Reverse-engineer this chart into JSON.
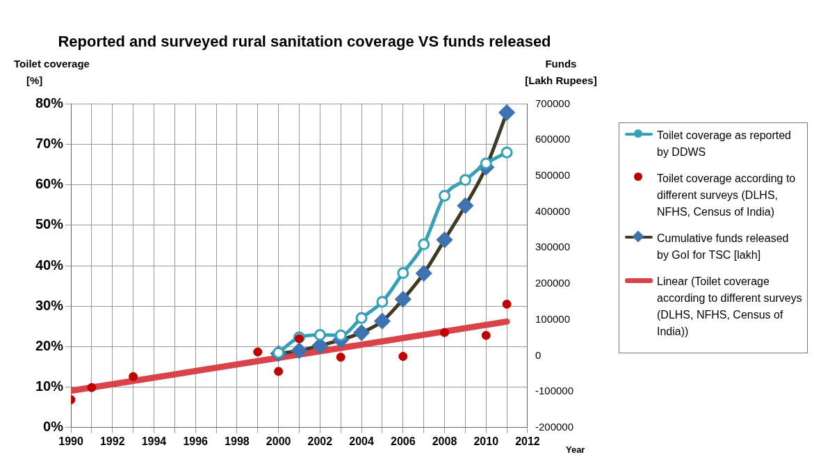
{
  "chart_data": {
    "type": "line",
    "title": "Reported and surveyed rural sanitation coverage VS funds released",
    "ylabel": "Toilet coverage\n[%]",
    "y2label": "Funds\n[Lakh Rupees]",
    "xlabel": "Year",
    "xlim": [
      1990,
      2012
    ],
    "xticks": [
      1990,
      {
        "value": 1991,
        "label": null
      },
      1992,
      {
        "value": 1993,
        "label": null
      },
      1994,
      {
        "value": 1995,
        "label": null
      },
      1996,
      {
        "value": 1997,
        "label": null
      },
      1998,
      {
        "value": 1999,
        "label": null
      },
      2000,
      {
        "value": 2001,
        "label": null
      },
      2002,
      {
        "value": 2003,
        "label": null
      },
      2004,
      {
        "value": 2005,
        "label": null
      },
      2006,
      {
        "value": 2007,
        "label": null
      },
      2008,
      {
        "value": 2009,
        "label": null
      },
      2010,
      {
        "value": 2011,
        "label": null
      },
      2012
    ],
    "ylim": [
      0,
      80
    ],
    "yticks": [
      {
        "value": 0,
        "label": "0%"
      },
      {
        "value": 10,
        "label": "10%"
      },
      {
        "value": 20,
        "label": "20%"
      },
      {
        "value": 30,
        "label": "30%"
      },
      {
        "value": 40,
        "label": "40%"
      },
      {
        "value": 50,
        "label": "50%"
      },
      {
        "value": 60,
        "label": "60%"
      },
      {
        "value": 70,
        "label": "70%"
      },
      {
        "value": 80,
        "label": "80%"
      }
    ],
    "y2lim": [
      -200000,
      700000
    ],
    "y2ticks": [
      -200000,
      -100000,
      0,
      100000,
      200000,
      300000,
      400000,
      500000,
      600000,
      700000
    ],
    "grid": true,
    "legend": "right",
    "series": [
      {
        "name": "Toilet coverage as reported by DDWS",
        "type": "line",
        "color": "#35a0b8",
        "marker": "circle",
        "x": [
          2000,
          2001,
          2002,
          2003,
          2004,
          2005,
          2006,
          2007,
          2008,
          2009,
          2010,
          2011
        ],
        "values": [
          18.5,
          22.3,
          22.9,
          22.8,
          27.1,
          31.1,
          38.2,
          45.3,
          57.3,
          61.2,
          65.3,
          68.0
        ]
      },
      {
        "name": "Toilet coverage according to different surveys (DLHS, NFHS, Census of India)",
        "type": "scatter",
        "color": "#c00000",
        "marker": "circle",
        "x": [
          1990,
          1991,
          1993,
          1999,
          2000,
          2001,
          2003,
          2006,
          2008,
          2010,
          2011
        ],
        "values": [
          6.9,
          9.9,
          12.6,
          18.7,
          13.9,
          22.0,
          17.4,
          17.6,
          23.5,
          22.8,
          30.5
        ]
      },
      {
        "name": "Cumulative funds released by GoI for TSC [lakh]",
        "type": "line",
        "axis": "y2",
        "color": "#403b25",
        "marker": "diamond",
        "colors": [
          "#3f72b0",
          "#3f72b0",
          "#3f72b0",
          "#3f72b0",
          "#3f72b0",
          "#3f72b0",
          "#3f72b0",
          "#3f72b0",
          "#3f72b0",
          "#3f72b0",
          "#3f72b0",
          "#3f72b0"
        ],
        "x": [
          2000,
          2001,
          2002,
          2003,
          2004,
          2005,
          2006,
          2007,
          2008,
          2009,
          2010,
          2011
        ],
        "values": [
          6000,
          14000,
          28000,
          44000,
          64000,
          96000,
          157000,
          229000,
          322000,
          417000,
          524000,
          676000
        ]
      },
      {
        "name": "Linear (Toilet coverage according to different surveys (DLHS, NFHS, Census of India))",
        "type": "line",
        "color": "#d9434a",
        "marker": "none",
        "x": [
          1990,
          2011
        ],
        "values": [
          9.1,
          26.2
        ]
      }
    ]
  }
}
